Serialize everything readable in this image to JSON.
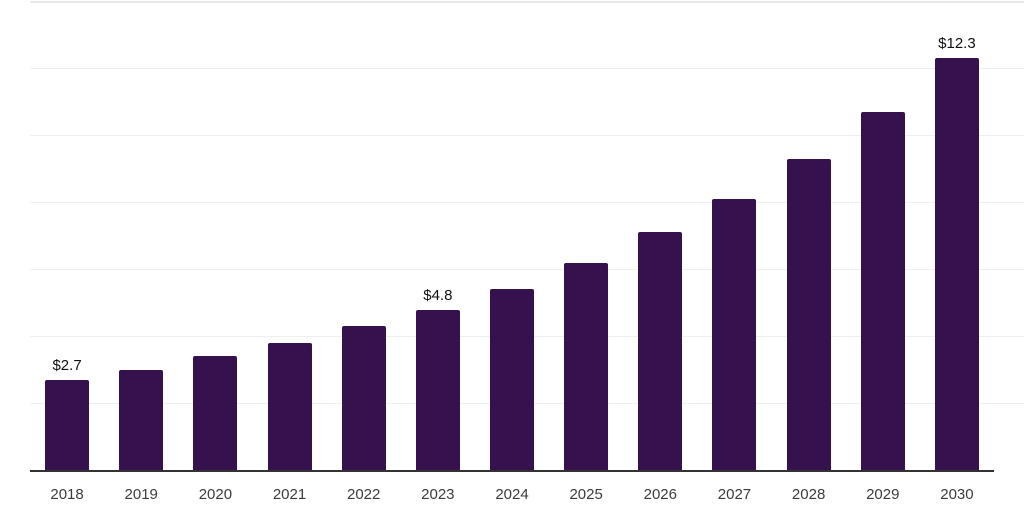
{
  "chart_data": {
    "type": "bar",
    "title": "",
    "xlabel": "",
    "ylabel": "",
    "categories": [
      "2018",
      "2019",
      "2020",
      "2021",
      "2022",
      "2023",
      "2024",
      "2025",
      "2026",
      "2027",
      "2028",
      "2029",
      "2030"
    ],
    "values": [
      2.7,
      3.0,
      3.4,
      3.8,
      4.3,
      4.8,
      5.4,
      6.2,
      7.1,
      8.1,
      9.3,
      10.7,
      12.3
    ],
    "value_labels": [
      {
        "index": 0,
        "text": "$2.7"
      },
      {
        "index": 5,
        "text": "$4.8"
      },
      {
        "index": 12,
        "text": "$12.3"
      }
    ],
    "ylim": [
      0,
      14
    ],
    "gridline_step": 2,
    "grid": true,
    "legend_position": "none",
    "colors": {
      "bar": "#35114d",
      "gridline": "#efeff2",
      "top_border": "#e7e7ec",
      "axis_line": "#333333",
      "x_tick_label": "#3c3c3c",
      "value_label": "#101010",
      "background": "#ffffff"
    }
  }
}
